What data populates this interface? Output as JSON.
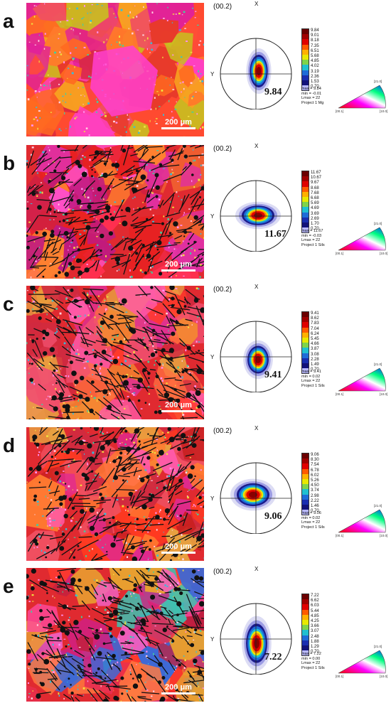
{
  "panels": [
    {
      "letter": "a",
      "scale_label": "200 μm",
      "pf_label": "(00.2)",
      "axis_x": "X",
      "axis_y": "Y",
      "max_value": "9.84",
      "legend_ticks": [
        "9.84",
        "9.01",
        "8.18",
        "7.35",
        "6.51",
        "5.68",
        "4.85",
        "4.02",
        "3.19",
        "2.36",
        "1.53",
        "0.70"
      ],
      "stats": [
        "max = 9.84",
        "min = -0.01",
        "Lmax = 22",
        "Project 1 Mg"
      ]
    },
    {
      "letter": "b",
      "scale_label": "200 μm",
      "pf_label": "(00.2)",
      "axis_x": "X",
      "axis_y": "Y",
      "max_value": "11.67",
      "legend_ticks": [
        "11.67",
        "10.67",
        "9.67",
        "8.68",
        "7.68",
        "6.68",
        "5.69",
        "4.69",
        "3.69",
        "2.69",
        "1.70",
        "0.70"
      ],
      "stats": [
        "max = 11.67",
        "min = -0.03",
        "Lmax = 22",
        "Project 1 Sils"
      ]
    },
    {
      "letter": "c",
      "scale_label": "200 μm",
      "pf_label": "(00.2)",
      "axis_x": "X",
      "axis_y": "Y",
      "max_value": "9.41",
      "legend_ticks": [
        "9.41",
        "8.62",
        "7.83",
        "7.04",
        "6.24",
        "5.45",
        "4.66",
        "3.87",
        "3.08",
        "2.28",
        "1.49",
        "0.70"
      ],
      "stats": [
        "max = 9.41",
        "min = 0.02",
        "Lmax = 22",
        "Project 1 Sils"
      ]
    },
    {
      "letter": "d",
      "scale_label": "200 μm",
      "pf_label": "(00.2)",
      "axis_x": "X",
      "axis_y": "Y",
      "max_value": "9.06",
      "legend_ticks": [
        "9.06",
        "8.30",
        "7.54",
        "6.78",
        "6.02",
        "5.26",
        "4.50",
        "3.74",
        "2.98",
        "2.22",
        "1.46",
        "0.70"
      ],
      "stats": [
        "max = 9.06",
        "min = 0.02",
        "Lmax = 22",
        "Project 1 Sils"
      ]
    },
    {
      "letter": "e",
      "scale_label": "200 μm",
      "pf_label": "(00.2)",
      "axis_x": "X",
      "axis_y": "Y",
      "max_value": "7.22",
      "legend_ticks": [
        "7.22",
        "6.62",
        "6.03",
        "5.44",
        "4.85",
        "4.25",
        "3.66",
        "3.07",
        "2.48",
        "1.88",
        "1.29",
        "0.70"
      ],
      "stats": [
        "max = 7.22",
        "min = 0.00",
        "Lmax = 22",
        "Project 1 Sils"
      ]
    }
  ],
  "ipf_labels": {
    "a": "[00.1]",
    "b": "[10.0]",
    "c": "[21.0]"
  },
  "colors": {
    "legend": [
      "#6b0000",
      "#a00000",
      "#e00000",
      "#ff5a00",
      "#ffb000",
      "#e8e800",
      "#7fd34a",
      "#20c0d0",
      "#1e6cd8",
      "#1a2eb0",
      "#12127a",
      "#b8b8ff"
    ]
  }
}
